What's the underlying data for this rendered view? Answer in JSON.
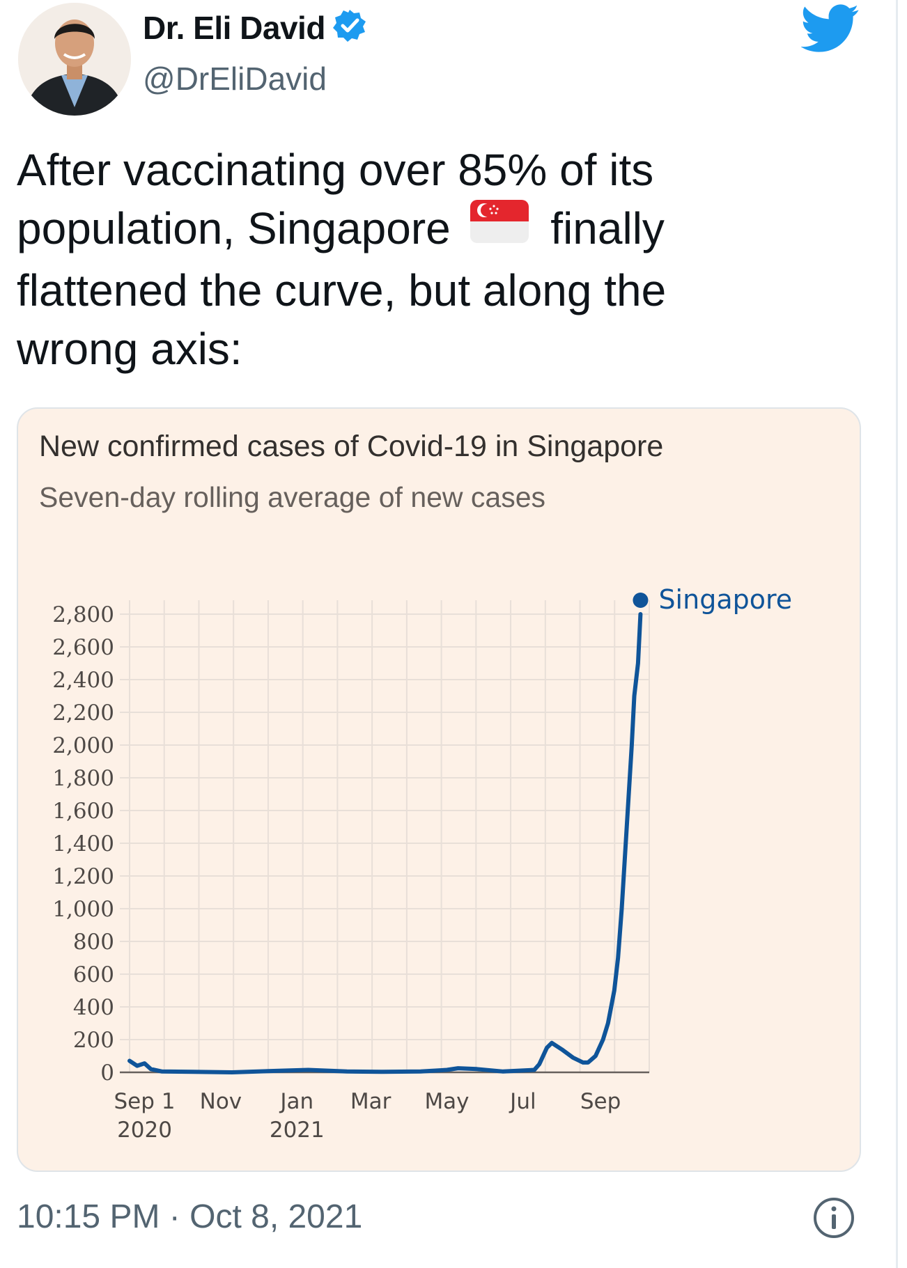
{
  "author": {
    "name": "Dr. Eli David",
    "handle": "@DrEliDavid",
    "verified": true
  },
  "tweet": {
    "line1": "After vaccinating over 85% of its",
    "line2a": "population, Singapore",
    "line2b": "finally",
    "line3": "flattened the curve, but along the",
    "line4": "wrong axis:",
    "emoji": "singapore-flag-emoji"
  },
  "footer": {
    "time": "10:15 PM · Oct 8, 2021"
  },
  "colors": {
    "twitter_blue": "#1d9bf0",
    "series": "#0f5499",
    "card_bg": "#fdf1e7",
    "grid": "#e8dfd8"
  },
  "icons": [
    "verified-badge-icon",
    "twitter-bird-icon",
    "info-icon"
  ],
  "chart_data": {
    "type": "line",
    "title": "New confirmed cases of Covid-19 in Singapore",
    "subtitle": "Seven-day rolling average of new cases",
    "y_ticks": [
      "2,800",
      "2,600",
      "2,400",
      "2,200",
      "2,000",
      "1,800",
      "1,600",
      "1,400",
      "1,200",
      "1,000",
      "800",
      "600",
      "400",
      "200",
      "0"
    ],
    "y_tick_values": [
      2800,
      2600,
      2400,
      2200,
      2000,
      1800,
      1600,
      1400,
      1200,
      1000,
      800,
      600,
      400,
      200,
      0
    ],
    "ylim": [
      0,
      2800
    ],
    "x_ticks": [
      {
        "label": "Sep 1",
        "sub": "2020",
        "date": "2020-09-01"
      },
      {
        "label": "Nov",
        "sub": "",
        "date": "2020-11-01"
      },
      {
        "label": "Jan",
        "sub": "2021",
        "date": "2021-01-01"
      },
      {
        "label": "Mar",
        "sub": "",
        "date": "2021-03-01"
      },
      {
        "label": "May",
        "sub": "",
        "date": "2021-05-01"
      },
      {
        "label": "Jul",
        "sub": "",
        "date": "2021-07-01"
      },
      {
        "label": "Sep",
        "sub": "",
        "date": "2021-09-01"
      }
    ],
    "xlim": [
      "2020-08-20",
      "2021-10-10"
    ],
    "grid": true,
    "legend_placement": "end-of-line",
    "series": [
      {
        "name": "Singapore",
        "points": [
          [
            "2020-08-20",
            70
          ],
          [
            "2020-08-26",
            40
          ],
          [
            "2020-09-01",
            55
          ],
          [
            "2020-09-06",
            20
          ],
          [
            "2020-09-15",
            5
          ],
          [
            "2020-10-10",
            3
          ],
          [
            "2020-11-10",
            0
          ],
          [
            "2020-12-20",
            10
          ],
          [
            "2021-01-10",
            15
          ],
          [
            "2021-02-10",
            5
          ],
          [
            "2021-03-10",
            3
          ],
          [
            "2021-04-10",
            5
          ],
          [
            "2021-05-01",
            15
          ],
          [
            "2021-05-10",
            25
          ],
          [
            "2021-05-25",
            20
          ],
          [
            "2021-06-15",
            5
          ],
          [
            "2021-07-10",
            15
          ],
          [
            "2021-07-14",
            50
          ],
          [
            "2021-07-20",
            150
          ],
          [
            "2021-07-24",
            180
          ],
          [
            "2021-08-01",
            140
          ],
          [
            "2021-08-10",
            90
          ],
          [
            "2021-08-18",
            60
          ],
          [
            "2021-08-22",
            60
          ],
          [
            "2021-08-28",
            100
          ],
          [
            "2021-09-03",
            200
          ],
          [
            "2021-09-07",
            300
          ],
          [
            "2021-09-12",
            500
          ],
          [
            "2021-09-15",
            700
          ],
          [
            "2021-09-18",
            1000
          ],
          [
            "2021-09-22",
            1500
          ],
          [
            "2021-09-26",
            2000
          ],
          [
            "2021-09-28",
            2300
          ],
          [
            "2021-10-01",
            2500
          ],
          [
            "2021-10-03",
            2800
          ]
        ]
      }
    ]
  }
}
